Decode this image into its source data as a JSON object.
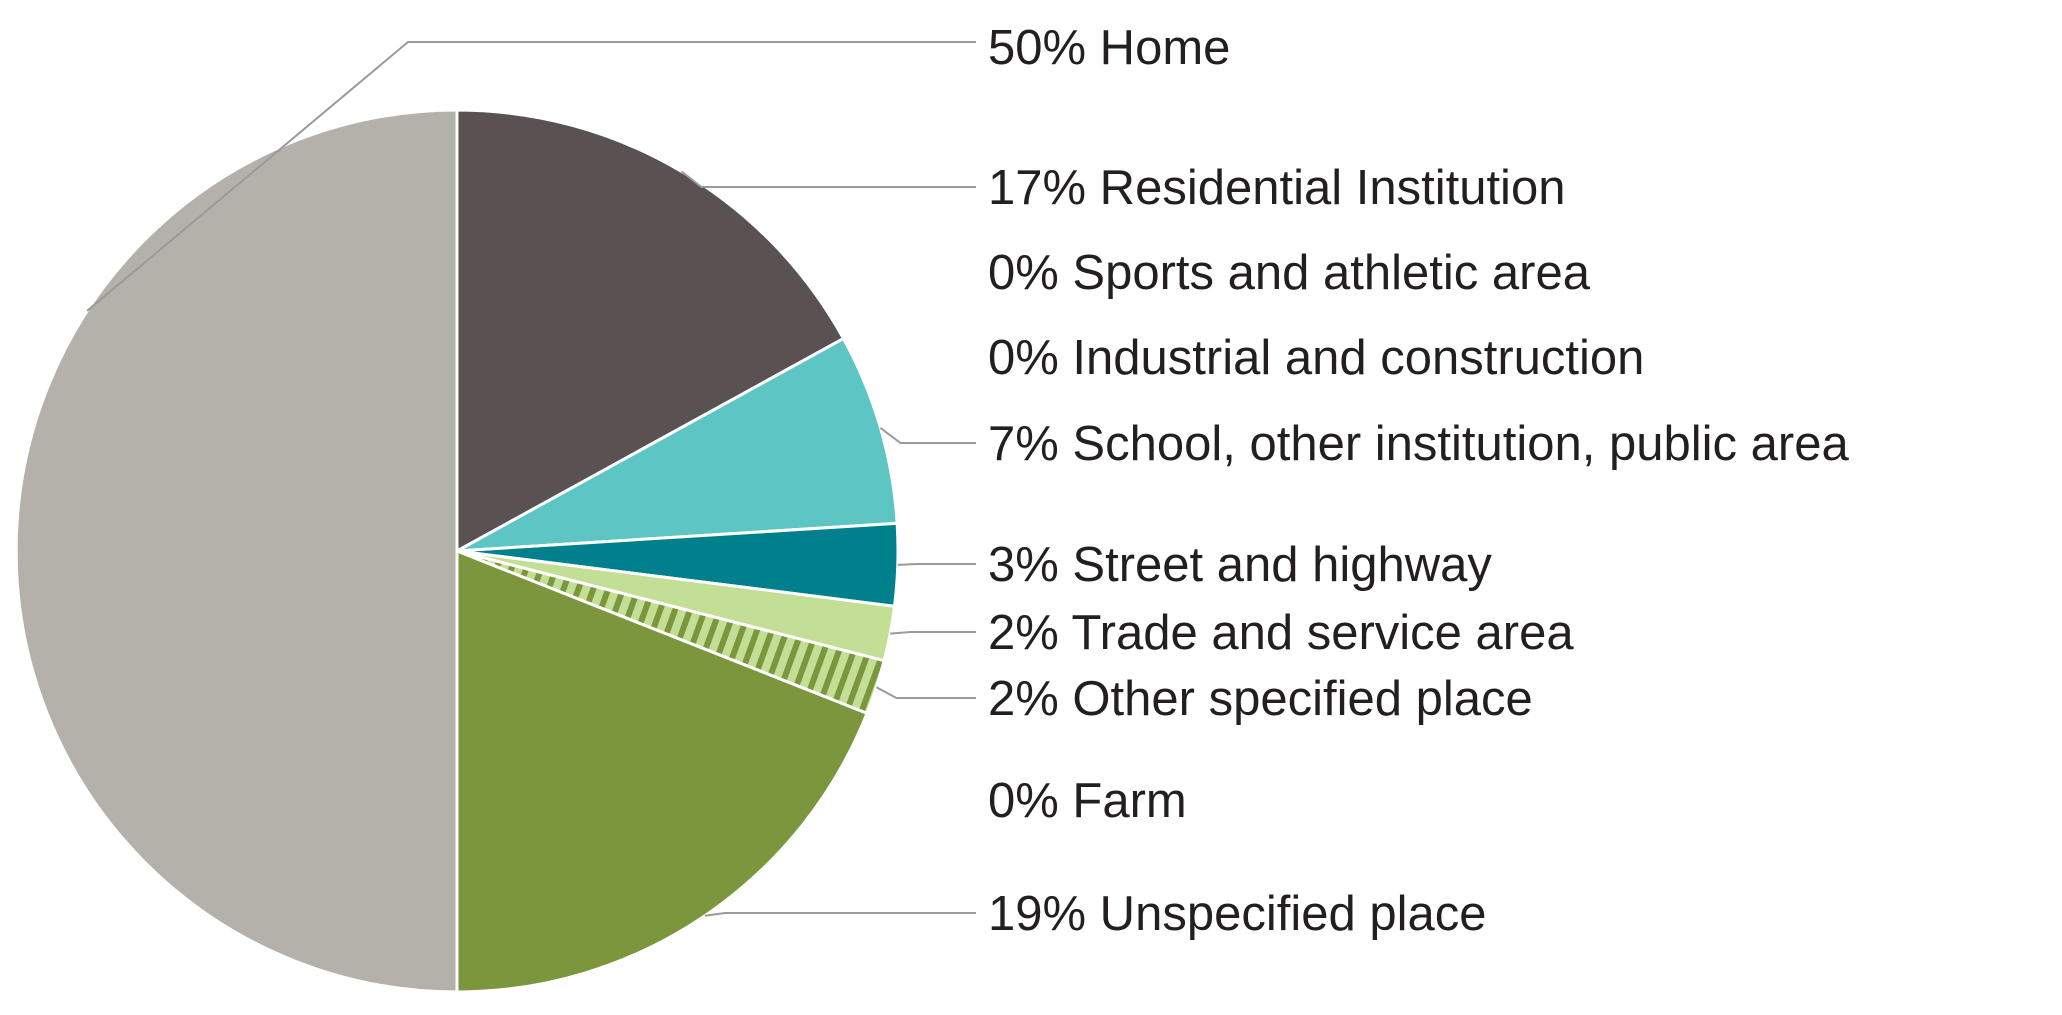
{
  "chart_data": {
    "type": "pie",
    "title": "",
    "start_angle_deg": 0,
    "direction": "clockwise",
    "slices": [
      {
        "label": "Residential Institution",
        "value": 17,
        "color": "#5a5153"
      },
      {
        "label": "Sports and athletic area",
        "value": 0,
        "color": "#5a5153"
      },
      {
        "label": "Industrial and construction",
        "value": 0,
        "color": "#5a5153"
      },
      {
        "label": "School, other institution, public area",
        "value": 7,
        "color": "#5ec5c5"
      },
      {
        "label": "Street and highway",
        "value": 3,
        "color": "#00808c"
      },
      {
        "label": "Trade and service area",
        "value": 2,
        "color": "#c3df96"
      },
      {
        "label": "Other specified place",
        "value": 2,
        "color": "#c3df96",
        "pattern": "hatched"
      },
      {
        "label": "Farm",
        "value": 0,
        "color": "#7b963c"
      },
      {
        "label": "Unspecified place",
        "value": 19,
        "color": "#7b963c"
      },
      {
        "label": "Home",
        "value": 50,
        "color": "#b3b1aa"
      }
    ],
    "legend": [
      {
        "text": "50% Home",
        "slice": 9,
        "leader": true
      },
      {
        "text": "17% Residential Institution",
        "slice": 0,
        "leader": true
      },
      {
        "text": "0% Sports and athletic area",
        "slice": 1,
        "leader": false
      },
      {
        "text": "0% Industrial and construction",
        "slice": 2,
        "leader": false
      },
      {
        "text": "7% School, other institution, public area",
        "slice": 3,
        "leader": true
      },
      {
        "text": "3% Street and highway",
        "slice": 4,
        "leader": true
      },
      {
        "text": "2% Trade and service area",
        "slice": 5,
        "leader": true
      },
      {
        "text": "2% Other specified place",
        "slice": 6,
        "leader": true
      },
      {
        "text": "0% Farm",
        "slice": 7,
        "leader": false
      },
      {
        "text": "19% Unspecified place",
        "slice": 8,
        "leader": true
      }
    ],
    "legend_position": "right"
  }
}
